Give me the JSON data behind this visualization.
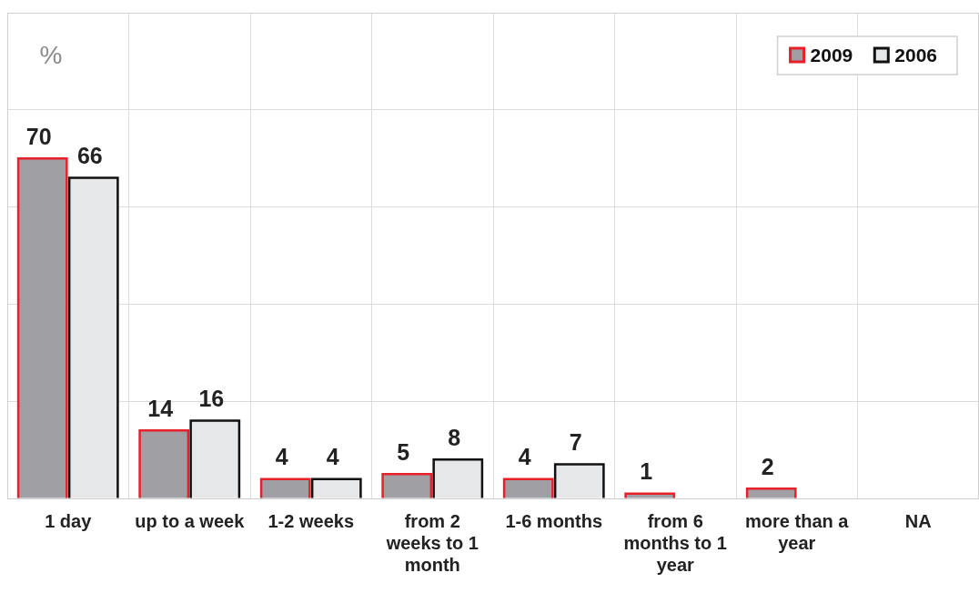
{
  "chart_data": {
    "type": "bar",
    "ylabel": "%",
    "categories": [
      "1 day",
      "up to a week",
      "1-2 weeks",
      "from 2 weeks  to 1 month",
      "1-6 months",
      "from 6 months to 1 year",
      "more than a year",
      "NA"
    ],
    "series": [
      {
        "name": "2009",
        "color": "#a09fa4",
        "values": [
          70,
          14,
          4,
          5,
          4,
          1,
          2,
          null
        ]
      },
      {
        "name": "2006",
        "color": "#e6e7e9",
        "values": [
          66,
          16,
          4,
          8,
          7,
          null,
          null,
          null
        ]
      }
    ],
    "grid": true,
    "legend": "top right",
    "data_labels": true,
    "tick_labels": "x"
  }
}
